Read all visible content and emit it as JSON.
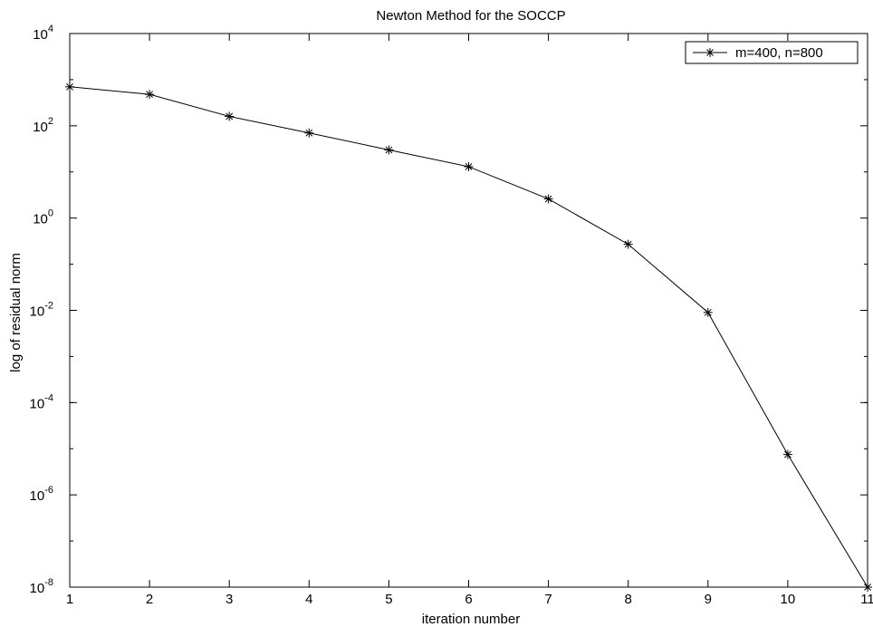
{
  "chart_data": {
    "type": "line",
    "title": "Newton Method for the SOCCP",
    "xlabel": "iteration number",
    "ylabel": "log of residual norm",
    "yscale": "log",
    "xlim": [
      1,
      11
    ],
    "ylim": [
      1e-08,
      10000
    ],
    "x_ticks": [
      1,
      2,
      3,
      4,
      5,
      6,
      7,
      8,
      9,
      10,
      11
    ],
    "y_ticks": [
      {
        "base": "10",
        "exp": "-8",
        "value": 1e-08
      },
      {
        "base": "10",
        "exp": "-6",
        "value": 1e-06
      },
      {
        "base": "10",
        "exp": "-4",
        "value": 0.0001
      },
      {
        "base": "10",
        "exp": "-2",
        "value": 0.01
      },
      {
        "base": "10",
        "exp": "0",
        "value": 1
      },
      {
        "base": "10",
        "exp": "2",
        "value": 100
      },
      {
        "base": "10",
        "exp": "4",
        "value": 10000
      }
    ],
    "grid": false,
    "legend_position": "top-right",
    "line_color": "#000000",
    "marker": "asterisk",
    "series": [
      {
        "name": "m=400, n=800",
        "x": [
          1,
          2,
          3,
          4,
          5,
          6,
          7,
          8,
          9,
          10,
          11
        ],
        "y": [
          700,
          480,
          160,
          70,
          30,
          13,
          2.6,
          0.27,
          0.009,
          7.5e-06,
          1e-08
        ]
      }
    ]
  }
}
